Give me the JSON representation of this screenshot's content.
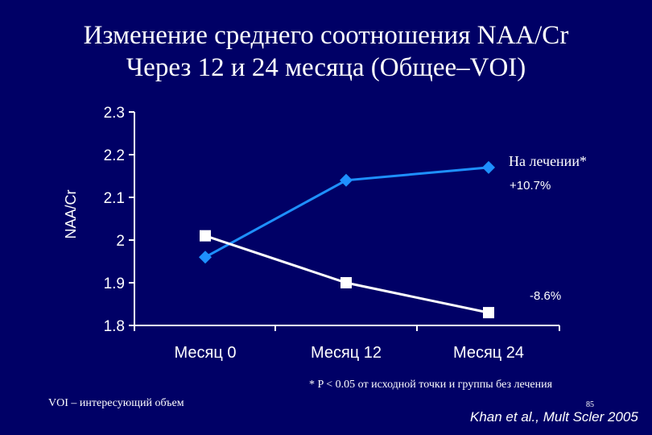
{
  "title_line1": "Изменение среднего соотношения NAA/Cr",
  "title_line2": "Через 12 и 24 месяца (Общее–VOI)",
  "annotations": {
    "treated_label": "На лечении*",
    "treated_change": "+10.7%",
    "other_change": "-8.6%"
  },
  "footer": {
    "note": "* P < 0.05 от исходной точки и группы без лечения",
    "voi": "VOI – интересующий объем",
    "page_number": "85",
    "citation": "Khan et al., Mult Scler 2005"
  },
  "colors": {
    "background": "#000066",
    "treated_series": "#1e90ff",
    "other_series": "#ffffff"
  },
  "chart_data": {
    "type": "line",
    "title": "",
    "xlabel": "",
    "ylabel": "NAA/Cr",
    "categories": [
      "Месяц 0",
      "Месяц 12",
      "Месяц 24"
    ],
    "ylim": [
      1.8,
      2.3
    ],
    "yticks": [
      "2.3",
      "2.2",
      "2.1",
      "2",
      "1.9",
      "1.8"
    ],
    "grid": false,
    "series": [
      {
        "name": "На лечении*",
        "marker": "diamond",
        "values": [
          1.96,
          2.14,
          2.17
        ]
      },
      {
        "name": "",
        "marker": "square",
        "values": [
          2.01,
          1.9,
          1.83
        ]
      }
    ]
  }
}
